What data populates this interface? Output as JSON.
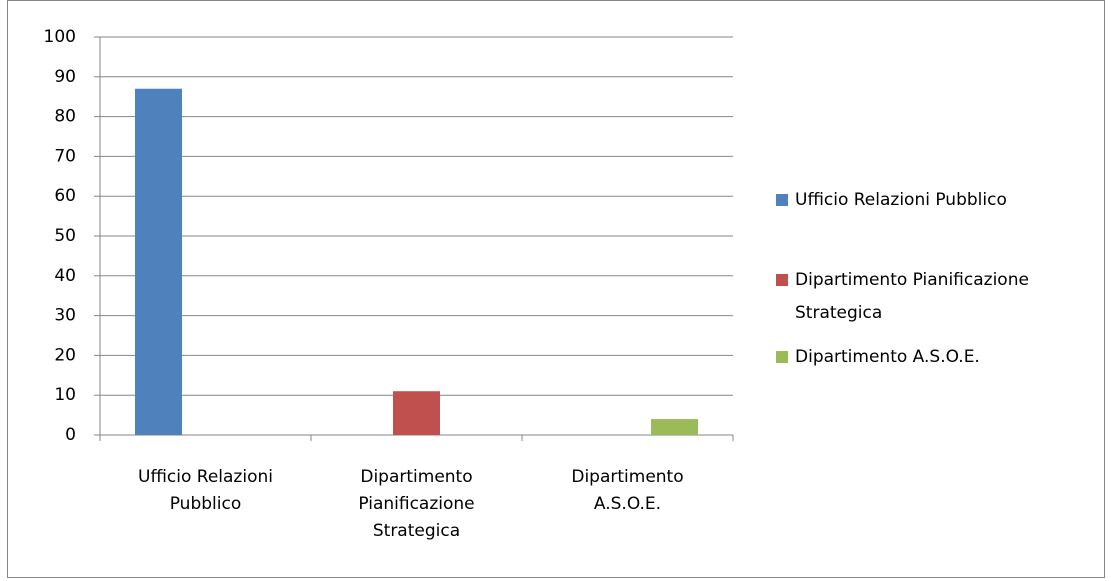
{
  "chart_data": {
    "type": "bar",
    "categories": [
      "Ufficio Relazioni Pubblico",
      "Dipartimento Pianificazione Strategica",
      "Dipartimento A.S.O.E."
    ],
    "series": [
      {
        "name": "Ufficio Relazioni Pubblico",
        "color": "#4f81bd",
        "values": [
          87,
          null,
          null
        ]
      },
      {
        "name": "Dipartimento Pianificazione Strategica",
        "color": "#c0504d",
        "values": [
          null,
          11,
          null
        ]
      },
      {
        "name": "Dipartimento A.S.O.E.",
        "color": "#9bbb59",
        "values": [
          null,
          null,
          4
        ]
      }
    ],
    "ylim": [
      0,
      100
    ],
    "yticks": [
      0,
      10,
      20,
      30,
      40,
      50,
      60,
      70,
      80,
      90,
      100
    ],
    "grid": true,
    "legend": "right"
  }
}
